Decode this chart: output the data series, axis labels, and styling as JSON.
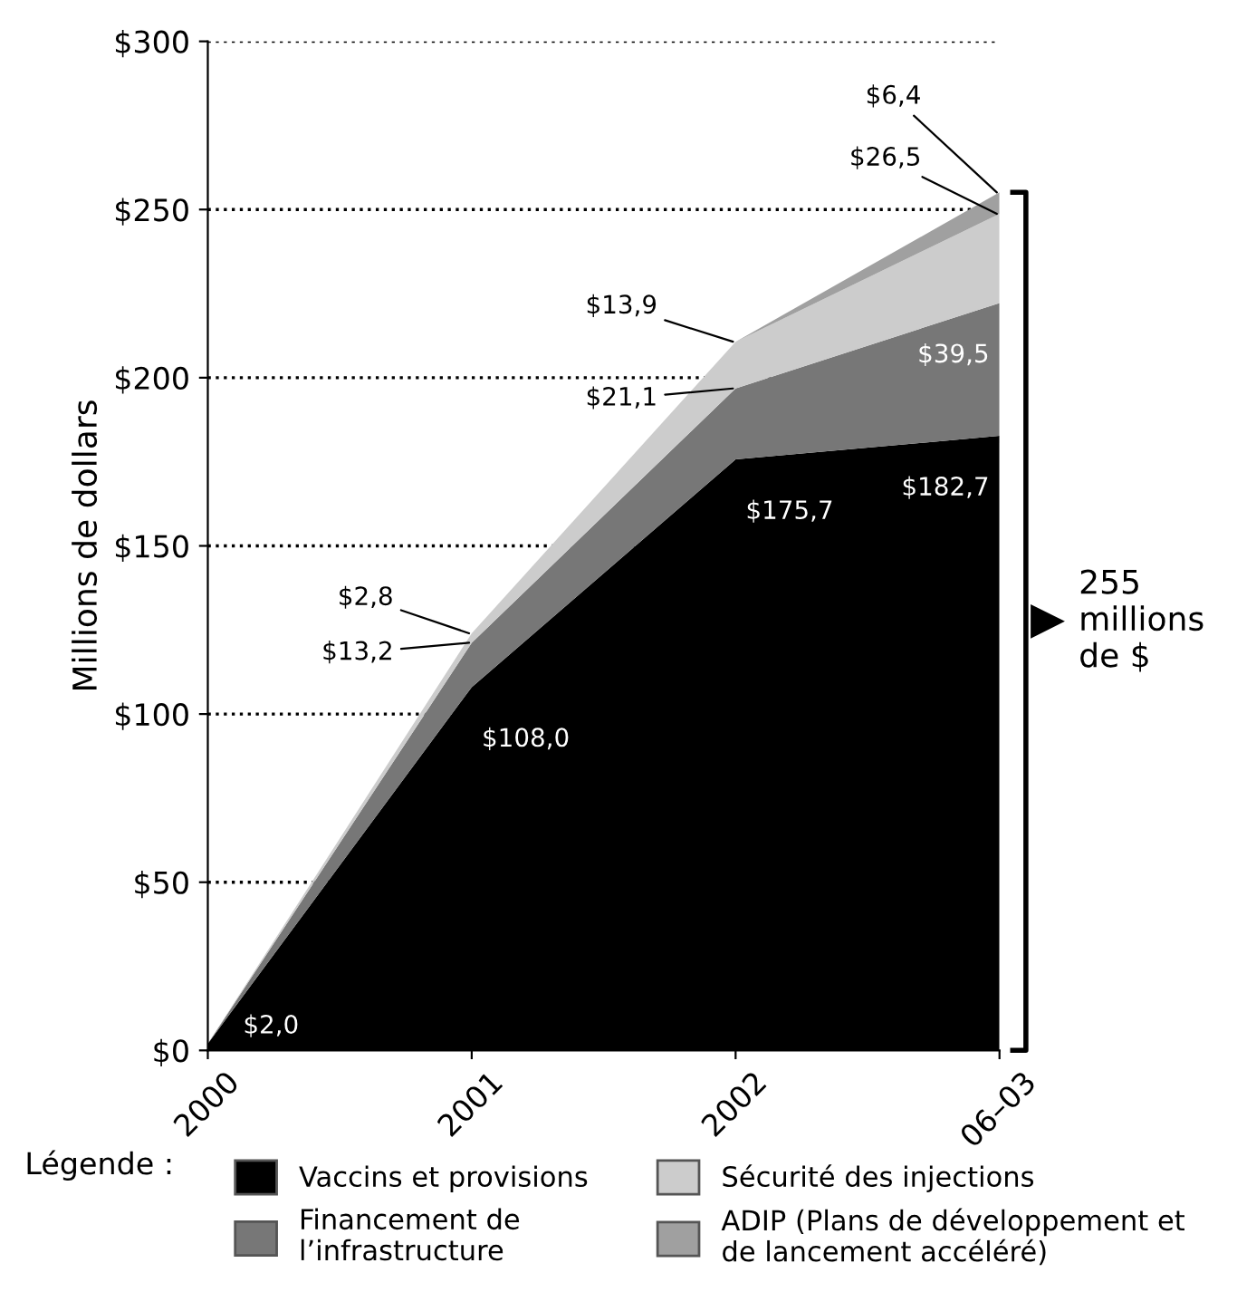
{
  "chart_data": {
    "type": "area",
    "stacked": true,
    "ylabel": "Millions de dollars",
    "legend_title": "Légende :",
    "categories": [
      "2000",
      "2001",
      "2002",
      "06–03"
    ],
    "series": [
      {
        "name": "Vaccins et provisions",
        "color": "#000000",
        "values": [
          2.0,
          108.0,
          175.7,
          182.7
        ],
        "value_labels": [
          "$2,0",
          "$108,0",
          "$175,7",
          "$182,7"
        ]
      },
      {
        "name": "Financement de\nl’infrastructure",
        "color": "#777777",
        "values": [
          0,
          13.2,
          21.1,
          39.5
        ],
        "value_labels": [
          null,
          "$13,2",
          "$21,1",
          "$39,5"
        ]
      },
      {
        "name": "Sécurité des injections",
        "color": "#cccccc",
        "values": [
          0,
          2.8,
          13.9,
          26.5
        ],
        "value_labels": [
          null,
          "$2,8",
          "$13,9",
          "$26,5"
        ]
      },
      {
        "name": "ADIP (Plans de développement et\nde lancement accéléré)",
        "color": "#a0a0a0",
        "values": [
          0,
          0,
          0,
          6.4
        ],
        "value_labels": [
          null,
          null,
          null,
          "$6,4"
        ]
      }
    ],
    "ylim": [
      0,
      300
    ],
    "yticks": [
      {
        "value": 0,
        "label": "$0"
      },
      {
        "value": 50,
        "label": "$50"
      },
      {
        "value": 100,
        "label": "$100"
      },
      {
        "value": 150,
        "label": "$150"
      },
      {
        "value": 200,
        "label": "$200"
      },
      {
        "value": 250,
        "label": "$250"
      },
      {
        "value": 300,
        "label": "$300"
      }
    ],
    "grid": "y",
    "line_style": "dotted",
    "legend": "bottom",
    "annotations": [
      "255\nmillions\nde $"
    ]
  }
}
